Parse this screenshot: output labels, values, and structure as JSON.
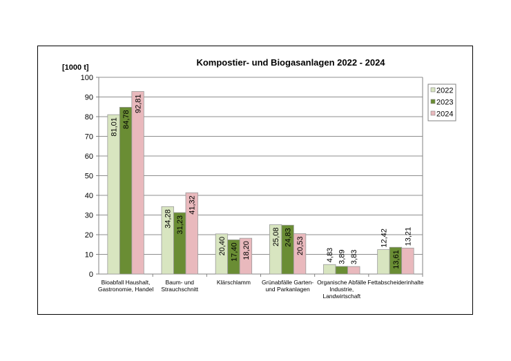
{
  "chart_data": {
    "type": "bar",
    "title": "Kompostier- und Biogasanlagen 2022 - 2024",
    "ylabel": "[1000 t]",
    "xlabel": "",
    "ylim": [
      0,
      100
    ],
    "yticks": [
      0,
      10,
      20,
      30,
      40,
      50,
      60,
      70,
      80,
      90,
      100
    ],
    "grid": true,
    "legend_position": "right",
    "categories": [
      [
        "Bioabfall Haushalt,",
        "Gastronomie, Handel"
      ],
      [
        "Baum- und",
        "Strauchschnitt"
      ],
      [
        "Klärschlamm"
      ],
      [
        "Grünabfälle Garten-",
        "und Parkanlagen"
      ],
      [
        "Organische Abfälle",
        "Industrie,",
        "Landwirtschaft"
      ],
      [
        "Fettabscheiderinhalte"
      ]
    ],
    "series": [
      {
        "name": "2022",
        "color": "#d8e5c0",
        "values": [
          81.01,
          34.28,
          20.4,
          25.08,
          4.83,
          12.42
        ],
        "labels": [
          "81,01",
          "34,28",
          "20,40",
          "25,08",
          "4,83",
          "12,42"
        ]
      },
      {
        "name": "2023",
        "color": "#6a8d34",
        "values": [
          84.78,
          31.23,
          17.4,
          24.83,
          3.89,
          13.61
        ],
        "labels": [
          "84,78",
          "31,23",
          "17,40",
          "24,83",
          "3,89",
          "13,61"
        ]
      },
      {
        "name": "2024",
        "color": "#e9b9bd",
        "values": [
          92.81,
          41.32,
          18.2,
          20.53,
          3.83,
          13.21
        ],
        "labels": [
          "92,81",
          "41,32",
          "18,20",
          "20,53",
          "3,83",
          "13,21"
        ]
      }
    ]
  }
}
